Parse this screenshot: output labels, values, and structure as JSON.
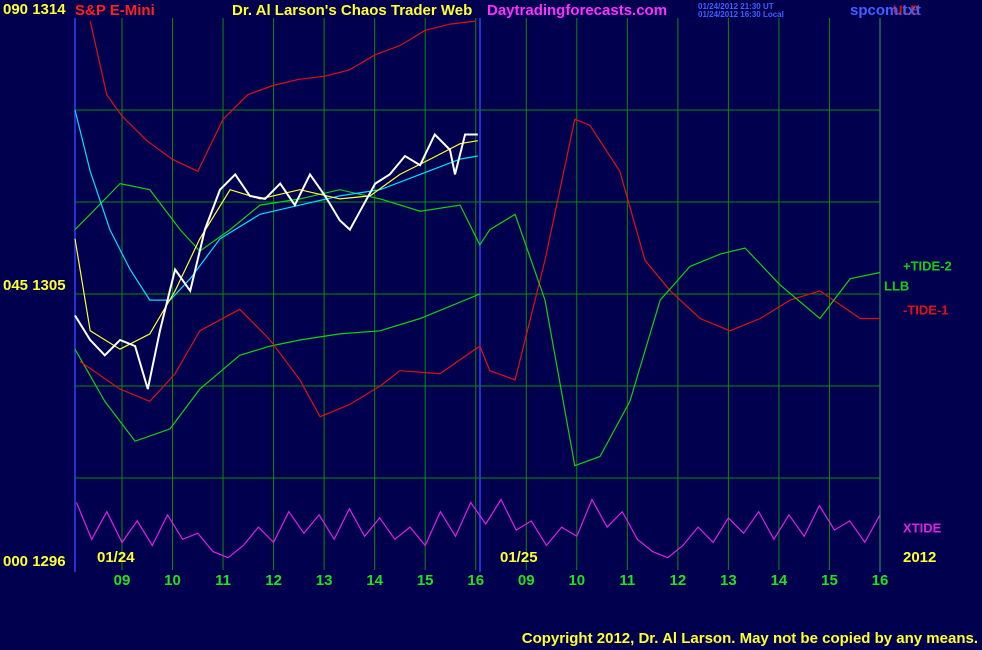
{
  "chart_data": {
    "type": "line",
    "symbol": "S&P E-Mini",
    "title": "Dr. Al Larson's Chaos Trader Web",
    "site": "Daytradingforecasts.com",
    "timestamps": [
      "01/24/2012 21:30 UT",
      "01/24/2012 16:30 Local"
    ],
    "file": "spcom.txt",
    "copyright": "Copyright 2012, Dr. Al Larson. May not be copied by any means.",
    "date_labels": [
      "01/24",
      "01/25",
      "2012"
    ],
    "xlim": [
      0.07,
      16
    ],
    "xticks": [
      {
        "value": 1,
        "label": "09"
      },
      {
        "value": 2,
        "label": "10"
      },
      {
        "value": 3,
        "label": "11"
      },
      {
        "value": 4,
        "label": "12"
      },
      {
        "value": 5,
        "label": "13"
      },
      {
        "value": 6,
        "label": "14"
      },
      {
        "value": 7,
        "label": "15"
      },
      {
        "value": 8,
        "label": "16"
      },
      {
        "value": 9,
        "label": "09"
      },
      {
        "value": 10,
        "label": "10"
      },
      {
        "value": 11,
        "label": "11"
      },
      {
        "value": 12,
        "label": "12"
      },
      {
        "value": 13,
        "label": "13"
      },
      {
        "value": 14,
        "label": "14"
      },
      {
        "value": 15,
        "label": "15"
      },
      {
        "value": 16,
        "label": "16"
      }
    ],
    "ylim": [
      1296,
      1314
    ],
    "yticks": [
      {
        "value": 1296,
        "label": "000  1296"
      },
      {
        "value": 1305,
        "label": "045  1305"
      },
      {
        "value": 1314,
        "label": "090  1314"
      }
    ],
    "ygrid": [
      1299,
      1302,
      1308,
      1311
    ],
    "grid": true,
    "series": [
      {
        "name": "ULB",
        "color": "#e01010",
        "x": [
          0.37,
          0.7,
          1.0,
          1.49,
          1.99,
          2.5,
          3.0,
          3.49,
          3.99,
          4.5,
          5.0,
          5.49,
          6.01,
          6.5,
          7.0,
          7.49,
          7.99
        ],
        "values": [
          1313.9,
          1311.5,
          1310.8,
          1310.0,
          1309.4,
          1309.0,
          1310.7,
          1311.5,
          1311.8,
          1312.0,
          1312.1,
          1312.3,
          1312.8,
          1313.1,
          1313.6,
          1313.8,
          1313.9
        ]
      },
      {
        "name": "LLB",
        "color": "#10d010",
        "x": [
          0.07,
          0.66,
          1.26,
          1.95,
          2.54,
          3.33,
          3.93,
          4.52,
          5.31,
          6.11,
          6.9,
          7.49,
          8.08
        ],
        "values": [
          1303.2,
          1301.5,
          1300.2,
          1300.6,
          1301.9,
          1303.0,
          1303.3,
          1303.5,
          1303.7,
          1303.8,
          1304.2,
          1304.6,
          1305.0
        ]
      },
      {
        "name": "-TIDE-1",
        "color": "#e01010",
        "x": [
          0.17,
          0.96,
          1.55,
          2.05,
          2.54,
          3.33,
          3.93,
          4.52,
          4.92,
          5.51,
          6.11,
          6.5,
          7.29,
          8.08,
          8.28,
          8.78,
          9.37,
          9.96,
          10.26,
          10.85,
          11.35,
          11.85,
          12.44,
          13.03,
          13.63,
          14.22,
          14.81,
          15.61,
          16.0
        ],
        "values": [
          1302.8,
          1301.9,
          1301.5,
          1302.4,
          1303.8,
          1304.5,
          1303.5,
          1302.2,
          1301.0,
          1301.4,
          1302.0,
          1302.5,
          1302.4,
          1303.3,
          1302.5,
          1302.2,
          1306.1,
          1310.7,
          1310.5,
          1309.0,
          1306.1,
          1305.1,
          1304.2,
          1303.8,
          1304.2,
          1304.8,
          1305.1,
          1304.2,
          1304.2
        ]
      },
      {
        "name": "+TIDE-2",
        "color": "#10d010",
        "x": [
          0.07,
          0.37,
          0.96,
          1.55,
          2.15,
          2.54,
          3.14,
          3.73,
          4.52,
          5.31,
          6.11,
          6.9,
          7.69,
          8.08,
          8.28,
          8.78,
          9.37,
          9.96,
          10.46,
          11.05,
          11.65,
          12.24,
          12.84,
          13.33,
          14.02,
          14.81,
          15.41,
          16.0
        ],
        "values": [
          1307.1,
          1307.6,
          1308.6,
          1308.4,
          1307.1,
          1306.4,
          1307.1,
          1307.9,
          1308.1,
          1308.4,
          1308.1,
          1307.7,
          1307.9,
          1306.6,
          1307.1,
          1307.6,
          1304.8,
          1299.4,
          1299.7,
          1301.5,
          1304.8,
          1305.9,
          1306.3,
          1306.5,
          1305.3,
          1304.2,
          1305.5,
          1305.7
        ]
      },
      {
        "name": "XTIDE",
        "color": "#e020e0",
        "x": [
          0.1,
          0.4,
          0.7,
          1.0,
          1.3,
          1.6,
          1.9,
          2.2,
          2.5,
          2.8,
          3.1,
          3.4,
          3.7,
          4.0,
          4.3,
          4.6,
          4.9,
          5.2,
          5.5,
          5.8,
          6.1,
          6.4,
          6.7,
          7.0,
          7.3,
          7.6,
          7.9,
          8.2,
          8.5,
          8.8,
          9.1,
          9.4,
          9.7,
          10.0,
          10.3,
          10.6,
          10.9,
          11.2,
          11.5,
          11.8,
          12.1,
          12.4,
          12.7,
          13.0,
          13.3,
          13.6,
          13.9,
          14.2,
          14.5,
          14.8,
          15.1,
          15.4,
          15.7,
          16.0
        ],
        "values": [
          1298.2,
          1297.0,
          1297.9,
          1296.9,
          1297.6,
          1296.8,
          1297.8,
          1297.0,
          1297.2,
          1296.6,
          1296.4,
          1296.8,
          1297.4,
          1296.9,
          1297.9,
          1297.2,
          1297.8,
          1297.0,
          1298.0,
          1297.1,
          1297.7,
          1297.0,
          1297.4,
          1296.8,
          1297.9,
          1297.1,
          1298.2,
          1297.5,
          1298.3,
          1297.3,
          1297.6,
          1296.8,
          1297.4,
          1297.1,
          1298.3,
          1297.4,
          1297.9,
          1297.0,
          1296.6,
          1296.4,
          1296.8,
          1297.4,
          1296.9,
          1297.7,
          1297.2,
          1297.9,
          1297.0,
          1297.8,
          1297.1,
          1298.1,
          1297.3,
          1297.6,
          1296.9,
          1297.8
        ]
      },
      {
        "color": "#00e0ff",
        "x": [
          0.07,
          0.37,
          0.76,
          1.16,
          1.55,
          1.95,
          2.35,
          2.94,
          3.73,
          4.52,
          5.31,
          6.11,
          6.9,
          7.69,
          8.04
        ],
        "values": [
          1311.0,
          1309.0,
          1307.1,
          1305.8,
          1304.8,
          1304.8,
          1305.5,
          1306.8,
          1307.6,
          1307.9,
          1308.2,
          1308.4,
          1308.9,
          1309.4,
          1309.5
        ]
      },
      {
        "color": "#ffff30",
        "x": [
          0.07,
          0.37,
          0.96,
          1.55,
          2.05,
          2.54,
          3.14,
          3.73,
          4.52,
          5.31,
          5.91,
          6.5,
          7.1,
          7.69,
          8.04
        ],
        "values": [
          1306.8,
          1303.8,
          1303.2,
          1303.7,
          1305.1,
          1306.8,
          1308.4,
          1308.1,
          1308.4,
          1308.1,
          1308.2,
          1308.9,
          1309.4,
          1309.9,
          1310.0
        ]
      },
      {
        "color": "#ffffff",
        "x": [
          0.07,
          0.37,
          0.66,
          0.96,
          1.26,
          1.51,
          1.75,
          2.05,
          2.35,
          2.64,
          2.94,
          3.24,
          3.53,
          3.83,
          4.13,
          4.42,
          4.72,
          5.02,
          5.31,
          5.51,
          5.71,
          6.01,
          6.3,
          6.6,
          6.9,
          7.19,
          7.49,
          7.59,
          7.79,
          8.04
        ],
        "values": [
          1304.3,
          1303.5,
          1303.0,
          1303.5,
          1303.3,
          1301.9,
          1303.8,
          1305.8,
          1305.1,
          1307.1,
          1308.4,
          1308.9,
          1308.2,
          1308.1,
          1308.6,
          1307.9,
          1308.9,
          1308.2,
          1307.4,
          1307.1,
          1307.7,
          1308.6,
          1308.9,
          1309.5,
          1309.2,
          1310.2,
          1309.7,
          1308.9,
          1310.2,
          1310.2
        ]
      }
    ]
  }
}
